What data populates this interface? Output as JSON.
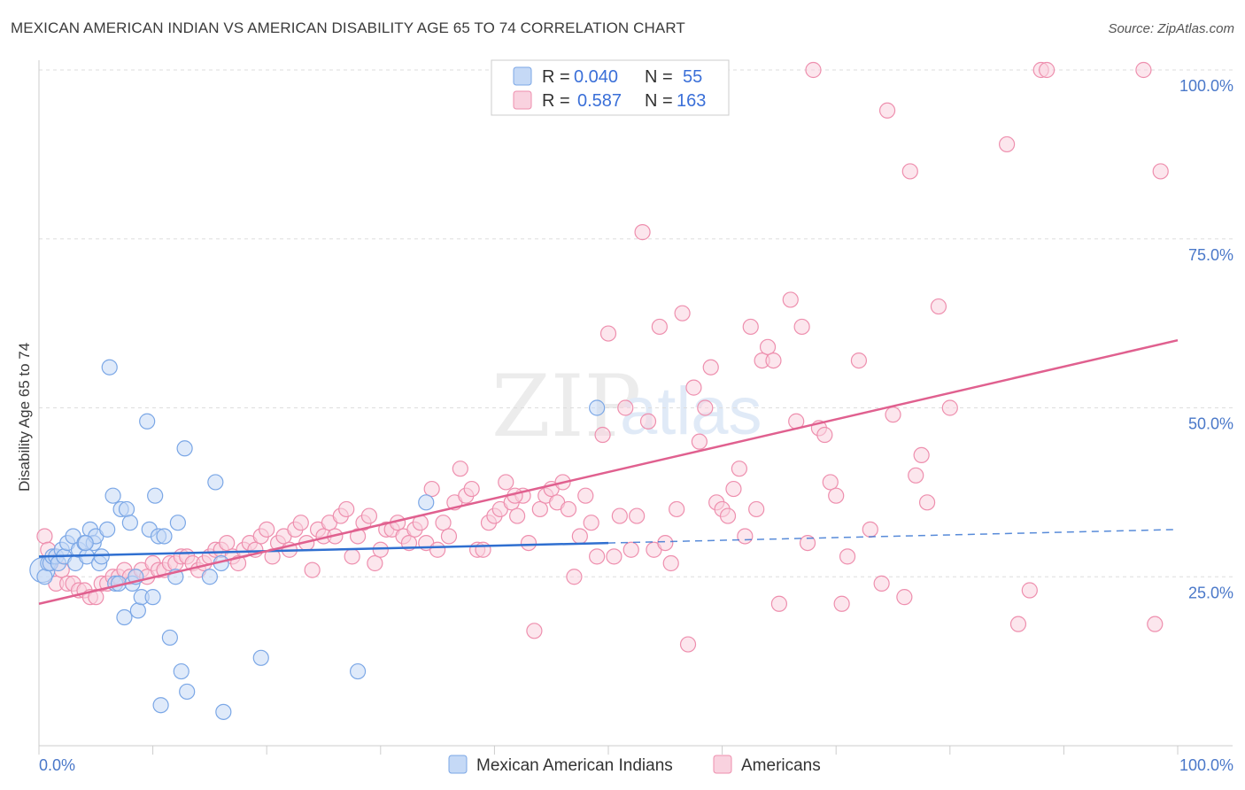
{
  "title": "MEXICAN AMERICAN INDIAN VS AMERICAN DISABILITY AGE 65 TO 74 CORRELATION CHART",
  "source": "Source: ZipAtlas.com",
  "watermark": {
    "zip": "ZIP",
    "atlas": "atlas"
  },
  "colors": {
    "blue": "#7ba7e6",
    "blue_fill": "#c5d9f6",
    "blue_line": "#2f6fd0",
    "pink": "#ee8fae",
    "pink_fill": "#f9d2df",
    "pink_line": "#e0608f",
    "grid": "#dddddd",
    "tick_text": "#4a78c9"
  },
  "legend": {
    "rows": [
      {
        "r_label": "R =",
        "r_value": "0.040",
        "n_label": "N =",
        "n_value": "55"
      },
      {
        "r_label": "R =",
        "r_value": "0.587",
        "n_label": "N =",
        "n_value": "163"
      }
    ]
  },
  "chart_data": {
    "type": "scatter",
    "title": "MEXICAN AMERICAN INDIAN VS AMERICAN DISABILITY AGE 65 TO 74 CORRELATION CHART",
    "xlabel": "",
    "ylabel": "Disability Age 65 to 74",
    "xlim": [
      0,
      100
    ],
    "ylim": [
      0,
      100
    ],
    "x_tick_labels": [
      "0.0%",
      "100.0%"
    ],
    "y_tick_labels": [
      {
        "value": 25,
        "label": "25.0%"
      },
      {
        "value": 50,
        "label": "50.0%"
      },
      {
        "value": 75,
        "label": "75.0%"
      },
      {
        "value": 100,
        "label": "100.0%"
      }
    ],
    "legend_placement": "bottom-center",
    "series": [
      {
        "name": "Mexican American Indians",
        "color": "blue",
        "R": 0.04,
        "N": 55,
        "trend": {
          "x0": 0,
          "y0": 28.0,
          "x1": 50,
          "y1": 30.0,
          "dash_to_x": 100,
          "dash_to_y": 32.0
        },
        "points": [
          [
            0.3,
            26
          ],
          [
            0.5,
            25
          ],
          [
            0.8,
            27
          ],
          [
            1,
            27
          ],
          [
            1.2,
            28
          ],
          [
            1.5,
            28
          ],
          [
            1.7,
            27
          ],
          [
            2,
            29
          ],
          [
            2.2,
            28
          ],
          [
            2.5,
            30
          ],
          [
            3,
            31
          ],
          [
            3.2,
            27
          ],
          [
            3.5,
            29
          ],
          [
            4,
            30
          ],
          [
            4.2,
            28
          ],
          [
            4.5,
            32
          ],
          [
            4.8,
            30
          ],
          [
            5,
            31
          ],
          [
            5.3,
            27
          ],
          [
            5.5,
            28
          ],
          [
            6,
            32
          ],
          [
            6.2,
            56
          ],
          [
            6.5,
            37
          ],
          [
            6.7,
            24
          ],
          [
            7,
            24
          ],
          [
            7.2,
            35
          ],
          [
            7.5,
            19
          ],
          [
            7.7,
            35
          ],
          [
            8,
            33
          ],
          [
            8.2,
            24
          ],
          [
            8.5,
            25
          ],
          [
            8.7,
            20
          ],
          [
            9,
            22
          ],
          [
            9.5,
            48
          ],
          [
            9.7,
            32
          ],
          [
            10,
            22
          ],
          [
            10.2,
            37
          ],
          [
            10.5,
            31
          ],
          [
            11,
            31
          ],
          [
            11.5,
            16
          ],
          [
            12,
            25
          ],
          [
            12.2,
            33
          ],
          [
            12.5,
            11
          ],
          [
            12.8,
            44
          ],
          [
            13,
            8
          ],
          [
            15,
            25
          ],
          [
            15.5,
            39
          ],
          [
            16,
            27
          ],
          [
            16.2,
            5
          ],
          [
            19.5,
            13
          ],
          [
            28,
            11
          ],
          [
            34,
            36
          ],
          [
            49,
            50
          ],
          [
            10.7,
            6
          ],
          [
            4.1,
            30
          ]
        ],
        "sizes_note": "first point drawn larger"
      },
      {
        "name": "Americans",
        "color": "pink",
        "R": 0.587,
        "N": 163,
        "trend": {
          "x0": 0,
          "y0": 21.0,
          "x1": 100,
          "y1": 60.0
        },
        "points": [
          [
            0.5,
            31
          ],
          [
            0.8,
            29
          ],
          [
            1,
            27
          ],
          [
            1.5,
            24
          ],
          [
            2,
            26
          ],
          [
            2.5,
            24
          ],
          [
            3,
            24
          ],
          [
            3.5,
            23
          ],
          [
            4,
            23
          ],
          [
            4.5,
            22
          ],
          [
            5,
            22
          ],
          [
            5.5,
            24
          ],
          [
            6,
            24
          ],
          [
            6.5,
            25
          ],
          [
            7,
            25
          ],
          [
            7.5,
            26
          ],
          [
            8,
            25
          ],
          [
            8.5,
            25
          ],
          [
            9,
            26
          ],
          [
            9.5,
            25
          ],
          [
            10,
            27
          ],
          [
            10.5,
            26
          ],
          [
            11,
            26
          ],
          [
            11.5,
            27
          ],
          [
            12,
            27
          ],
          [
            12.5,
            28
          ],
          [
            13,
            28
          ],
          [
            13.5,
            27
          ],
          [
            14,
            26
          ],
          [
            14.5,
            27
          ],
          [
            15,
            28
          ],
          [
            15.5,
            29
          ],
          [
            16,
            29
          ],
          [
            16.5,
            30
          ],
          [
            17,
            28
          ],
          [
            17.5,
            27
          ],
          [
            18,
            29
          ],
          [
            18.5,
            30
          ],
          [
            19,
            29
          ],
          [
            19.5,
            31
          ],
          [
            20,
            32
          ],
          [
            20.5,
            28
          ],
          [
            21,
            30
          ],
          [
            21.5,
            31
          ],
          [
            22,
            29
          ],
          [
            22.5,
            32
          ],
          [
            23,
            33
          ],
          [
            23.5,
            30
          ],
          [
            24,
            26
          ],
          [
            24.5,
            32
          ],
          [
            25,
            31
          ],
          [
            25.5,
            33
          ],
          [
            26,
            31
          ],
          [
            26.5,
            34
          ],
          [
            27,
            35
          ],
          [
            27.5,
            28
          ],
          [
            28,
            31
          ],
          [
            28.5,
            33
          ],
          [
            29,
            34
          ],
          [
            29.5,
            27
          ],
          [
            30,
            29
          ],
          [
            30.5,
            32
          ],
          [
            31,
            32
          ],
          [
            31.5,
            33
          ],
          [
            32,
            31
          ],
          [
            32.5,
            30
          ],
          [
            33,
            32
          ],
          [
            33.5,
            33
          ],
          [
            34,
            30
          ],
          [
            34.5,
            38
          ],
          [
            35,
            29
          ],
          [
            35.5,
            33
          ],
          [
            36,
            31
          ],
          [
            36.5,
            36
          ],
          [
            37,
            41
          ],
          [
            37.5,
            37
          ],
          [
            38,
            38
          ],
          [
            38.5,
            29
          ],
          [
            39,
            29
          ],
          [
            39.5,
            33
          ],
          [
            40,
            34
          ],
          [
            40.5,
            35
          ],
          [
            41,
            39
          ],
          [
            41.5,
            36
          ],
          [
            42,
            34
          ],
          [
            42.5,
            37
          ],
          [
            43,
            30
          ],
          [
            43.5,
            17
          ],
          [
            44,
            35
          ],
          [
            44.5,
            37
          ],
          [
            45,
            38
          ],
          [
            45.5,
            36
          ],
          [
            46,
            39
          ],
          [
            46.5,
            35
          ],
          [
            47,
            25
          ],
          [
            47.5,
            31
          ],
          [
            48,
            37
          ],
          [
            48.5,
            33
          ],
          [
            49,
            28
          ],
          [
            49.5,
            46
          ],
          [
            50,
            61
          ],
          [
            50.5,
            28
          ],
          [
            51,
            34
          ],
          [
            51.5,
            50
          ],
          [
            52,
            29
          ],
          [
            52.5,
            34
          ],
          [
            53,
            76
          ],
          [
            53.5,
            48
          ],
          [
            54,
            29
          ],
          [
            54.5,
            62
          ],
          [
            55,
            30
          ],
          [
            55.5,
            27
          ],
          [
            56,
            35
          ],
          [
            56.5,
            64
          ],
          [
            57,
            15
          ],
          [
            57.5,
            53
          ],
          [
            58,
            45
          ],
          [
            58.5,
            50
          ],
          [
            59,
            56
          ],
          [
            59.5,
            36
          ],
          [
            60,
            35
          ],
          [
            60.5,
            34
          ],
          [
            61,
            38
          ],
          [
            61.5,
            41
          ],
          [
            62,
            31
          ],
          [
            62.5,
            62
          ],
          [
            63,
            35
          ],
          [
            63.5,
            57
          ],
          [
            64,
            59
          ],
          [
            64.5,
            57
          ],
          [
            65,
            21
          ],
          [
            66,
            66
          ],
          [
            66.5,
            48
          ],
          [
            67,
            62
          ],
          [
            67.5,
            30
          ],
          [
            68,
            100
          ],
          [
            68.5,
            47
          ],
          [
            69,
            46
          ],
          [
            69.5,
            39
          ],
          [
            70,
            37
          ],
          [
            70.5,
            21
          ],
          [
            71,
            28
          ],
          [
            72,
            57
          ],
          [
            73,
            32
          ],
          [
            74,
            24
          ],
          [
            74.5,
            94
          ],
          [
            75,
            49
          ],
          [
            76,
            22
          ],
          [
            76.5,
            85
          ],
          [
            77,
            40
          ],
          [
            77.5,
            43
          ],
          [
            78,
            36
          ],
          [
            79,
            65
          ],
          [
            80,
            50
          ],
          [
            85,
            89
          ],
          [
            86,
            18
          ],
          [
            87,
            23
          ],
          [
            88,
            100
          ],
          [
            88.5,
            100
          ],
          [
            97,
            100
          ],
          [
            98,
            18
          ],
          [
            98.5,
            85
          ],
          [
            41.8,
            37
          ]
        ]
      }
    ]
  },
  "bottom_legend": {
    "items": [
      {
        "label": "Mexican American Indians",
        "color": "blue"
      },
      {
        "label": "Americans",
        "color": "pink"
      }
    ]
  }
}
